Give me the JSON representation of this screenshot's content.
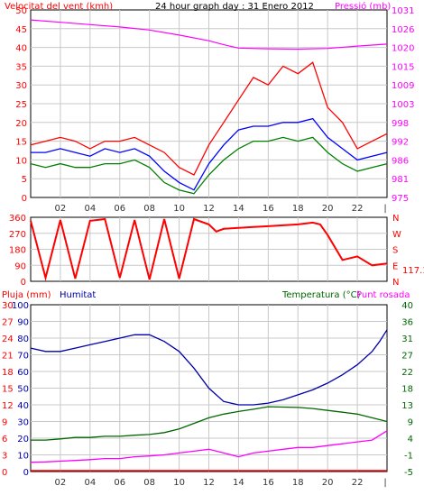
{
  "colors": {
    "wind": "#ff0000",
    "pressure": "#ff00ff",
    "wind_avg": "#0000ff",
    "wind_low": "#008000",
    "humidity": "#0000aa",
    "temperature": "#006600",
    "dewpoint": "#ff00ff",
    "rain": "#ff0000",
    "grid": "#c8c8c8",
    "axis_label": "#333333"
  },
  "chart_data": [
    {
      "type": "line",
      "title": "24 hour graph day : 31 Enero 2012",
      "left_label": "Velocitat del vent (kmh)",
      "right_label": "Pressió (mb)",
      "x_ticks": [
        "02",
        "04",
        "06",
        "08",
        "10",
        "12",
        "14",
        "16",
        "18",
        "20",
        "22"
      ],
      "x_range": [
        0,
        24
      ],
      "ylim_left": [
        0,
        50
      ],
      "yticks_left": [
        "0",
        "5",
        "10",
        "15",
        "20",
        "25",
        "30",
        "35",
        "40",
        "45",
        "50"
      ],
      "ylim_right": [
        975,
        1031
      ],
      "yticks_right": [
        "975",
        "981",
        "986",
        "992",
        "998",
        "1003",
        "1009",
        "1015",
        "1020",
        "1026",
        "1031"
      ],
      "series": [
        {
          "key": "wind_max",
          "x": [
            0,
            1,
            2,
            3,
            4,
            5,
            6,
            7,
            8,
            9,
            10,
            11,
            12,
            13,
            14,
            15,
            16,
            17,
            18,
            19,
            20,
            21,
            22,
            23,
            24
          ],
          "values": [
            14,
            15,
            16,
            15,
            13,
            15,
            15,
            16,
            14,
            12,
            8,
            6,
            14,
            20,
            26,
            32,
            30,
            35,
            33,
            36,
            24,
            20,
            13,
            15,
            17
          ]
        },
        {
          "key": "wind_avg",
          "x": [
            0,
            1,
            2,
            3,
            4,
            5,
            6,
            7,
            8,
            9,
            10,
            11,
            12,
            13,
            14,
            15,
            16,
            17,
            18,
            19,
            20,
            21,
            22,
            23,
            24
          ],
          "values": [
            12,
            12,
            13,
            12,
            11,
            13,
            12,
            13,
            11,
            7,
            4,
            2,
            9,
            14,
            18,
            19,
            19,
            20,
            20,
            21,
            16,
            13,
            10,
            11,
            12
          ]
        },
        {
          "key": "wind_low",
          "x": [
            0,
            1,
            2,
            3,
            4,
            5,
            6,
            7,
            8,
            9,
            10,
            11,
            12,
            13,
            14,
            15,
            16,
            17,
            18,
            19,
            20,
            21,
            22,
            23,
            24
          ],
          "values": [
            9,
            8,
            9,
            8,
            8,
            9,
            9,
            10,
            8,
            4,
            2,
            1,
            6,
            10,
            13,
            15,
            15,
            16,
            15,
            16,
            12,
            9,
            7,
            8,
            9
          ]
        },
        {
          "key": "pressure",
          "x": [
            0,
            2,
            4,
            6,
            8,
            10,
            12,
            13,
            14,
            16,
            18,
            20,
            22,
            24
          ],
          "values": [
            1028,
            1027.3,
            1026.6,
            1025.9,
            1025,
            1023.5,
            1021.8,
            1020.6,
            1019.6,
            1019.4,
            1019.3,
            1019.5,
            1020.2,
            1020.8
          ]
        }
      ]
    },
    {
      "type": "line",
      "left_label": "",
      "yticks_left": [
        "0",
        "90",
        "180",
        "270",
        "360"
      ],
      "ylim": [
        0,
        360
      ],
      "compass_labels": [
        "N",
        "W",
        "S",
        "E",
        "N"
      ],
      "current_value_label": "117.1",
      "series": [
        {
          "key": "wind_direction",
          "x": [
            0,
            1,
            2,
            3,
            4,
            5,
            6,
            7,
            8,
            9,
            10,
            11,
            12,
            12.5,
            13,
            14,
            15,
            16,
            17,
            18,
            19,
            19.5,
            20,
            21,
            22,
            23,
            24
          ],
          "values": [
            340,
            20,
            345,
            15,
            340,
            350,
            20,
            345,
            10,
            350,
            15,
            350,
            320,
            280,
            295,
            300,
            305,
            310,
            315,
            320,
            330,
            320,
            260,
            120,
            140,
            90,
            100
          ]
        }
      ]
    },
    {
      "type": "line",
      "left_label": "Pluja (mm)",
      "humidity_label": "Humitat",
      "right_label": "Temperatura (°C)",
      "dew_label": "Punt rosada",
      "x_ticks": [
        "02",
        "04",
        "06",
        "08",
        "10",
        "12",
        "14",
        "16",
        "18",
        "20",
        "22"
      ],
      "ylim_rain": [
        0,
        30
      ],
      "yticks_rain": [
        "0",
        "3",
        "6",
        "9",
        "12",
        "15",
        "18",
        "21",
        "24",
        "27",
        "30"
      ],
      "ylim_humidity": [
        0,
        100
      ],
      "yticks_humidity": [
        "0",
        "10",
        "20",
        "30",
        "40",
        "50",
        "60",
        "70",
        "80",
        "90",
        "100"
      ],
      "ylim_temp": [
        -5,
        40
      ],
      "yticks_temp": [
        "-5",
        "-1",
        "4",
        "9",
        "13",
        "18",
        "22",
        "27",
        "31",
        "36",
        "40"
      ],
      "series": [
        {
          "key": "humidity",
          "x": [
            0,
            1,
            2,
            3,
            4,
            5,
            6,
            7,
            8,
            9,
            10,
            11,
            12,
            13,
            14,
            15,
            16,
            17,
            18,
            19,
            20,
            21,
            22,
            23,
            23.5,
            24
          ],
          "values": [
            74,
            72,
            72,
            74,
            76,
            78,
            80,
            82,
            82,
            78,
            72,
            62,
            50,
            42,
            40,
            40,
            41,
            43,
            46,
            49,
            53,
            58,
            64,
            72,
            78,
            85
          ]
        },
        {
          "key": "temperature",
          "x": [
            0,
            1,
            2,
            3,
            4,
            5,
            6,
            7,
            8,
            9,
            10,
            11,
            12,
            13,
            14,
            15,
            16,
            17,
            18,
            19,
            20,
            21,
            22,
            23,
            24
          ],
          "values": [
            3.5,
            3.5,
            3.8,
            4.2,
            4.2,
            4.5,
            4.5,
            4.8,
            5,
            5.5,
            6.5,
            8,
            9.5,
            10.5,
            11.2,
            11.8,
            12.5,
            12.4,
            12.3,
            12,
            11.5,
            11,
            10.5,
            9.5,
            8.5
          ]
        },
        {
          "key": "dewpoint",
          "x": [
            0,
            1,
            2,
            3,
            4,
            5,
            6,
            7,
            8,
            9,
            10,
            11,
            12,
            13,
            14,
            15,
            16,
            17,
            18,
            19,
            20,
            21,
            22,
            23,
            24
          ],
          "values": [
            -2.5,
            -2.4,
            -2.2,
            -2,
            -1.8,
            -1.5,
            -1.5,
            -1,
            -0.8,
            -0.5,
            0,
            0.5,
            1,
            0,
            -1,
            0,
            0.5,
            1,
            1.5,
            1.5,
            2,
            2.5,
            3,
            3.5,
            6
          ]
        },
        {
          "key": "rain",
          "x": [
            0,
            24
          ],
          "values": [
            0,
            0
          ]
        }
      ]
    }
  ]
}
